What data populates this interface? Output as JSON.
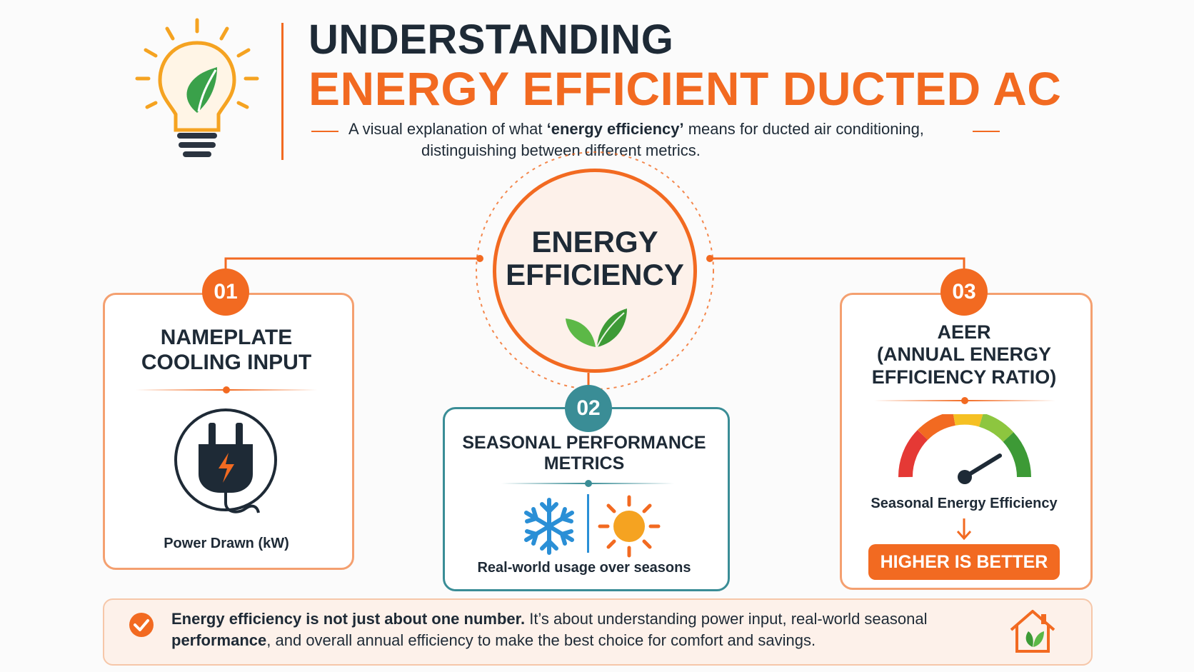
{
  "header": {
    "title_line1": "UNDERSTANDING",
    "title_line2": "ENERGY EFFICIENT DUCTED AC",
    "subtitle_pre": "A visual explanation of what ",
    "subtitle_bold": "‘energy efficiency’",
    "subtitle_post": " means for ducted air conditioning,",
    "subtitle_line2": "distinguishing between different metrics."
  },
  "center": {
    "line1": "ENERGY",
    "line2": "EFFICIENCY"
  },
  "cards": [
    {
      "number": "01",
      "title_line1": "NAMEPLATE",
      "title_line2": "COOLING INPUT",
      "caption": "Power Drawn (kW)"
    },
    {
      "number": "02",
      "title_line1": "SEASONAL PERFORMANCE",
      "title_line2": "METRICS",
      "caption": "Real-world usage over seasons"
    },
    {
      "number": "03",
      "title_line1": "AEER",
      "title_line2": "(ANNUAL ENERGY",
      "title_line3": "EFFICIENCY RATIO)",
      "caption": "Seasonal Energy Efficiency",
      "callout": "HIGHER IS BETTER"
    }
  ],
  "footer": {
    "bold1": "Energy efficiency is not just about one number.",
    "text1": " It’s about understanding power input, real-world seasonal",
    "bold2": "performance",
    "text2": ", and overall annual efficiency to make the best choice for comfort and savings."
  },
  "colors": {
    "orange": "#f26a21",
    "navy": "#1e2a36",
    "teal": "#3a8d96",
    "green": "#4caf3a",
    "snow_blue": "#2a8fd6"
  },
  "icons": [
    "lightbulb-leaf-icon",
    "leaf-icon",
    "power-plug-icon",
    "snowflake-icon",
    "sun-icon",
    "gauge-icon",
    "arrow-down-icon",
    "checkmark-icon",
    "house-leaf-icon"
  ]
}
